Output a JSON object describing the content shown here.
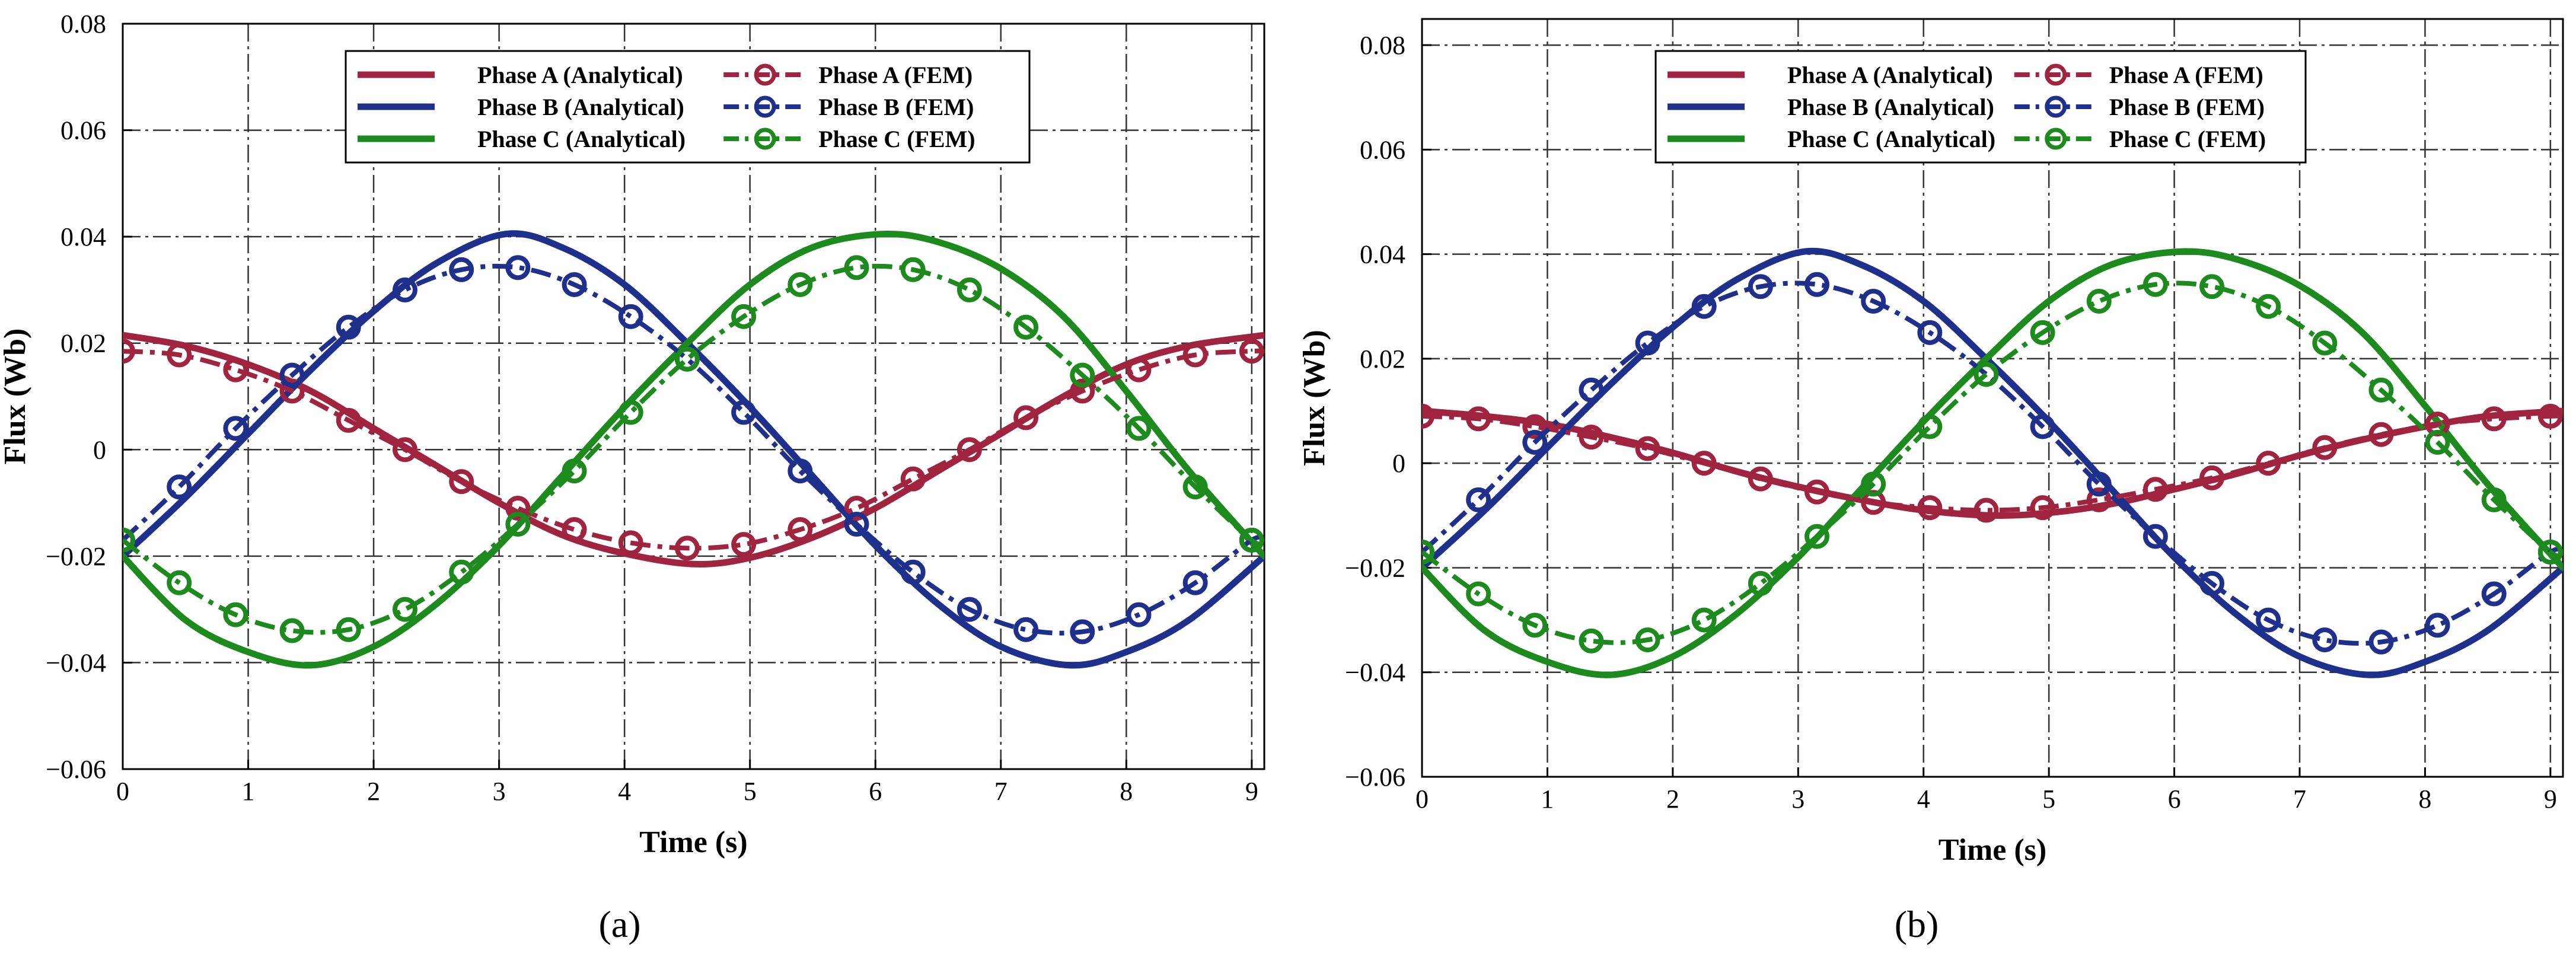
{
  "colors": {
    "phase_a": "#A0243F",
    "phase_b": "#1F2F8C",
    "phase_c": "#1C8A1C",
    "axis": "#000000",
    "grid": "#333333"
  },
  "chart_data": [
    {
      "panel_label": "(a)",
      "type": "line",
      "xlabel": "Time (s)",
      "ylabel": "Flux (Wb)",
      "xlim": [
        0,
        9.1
      ],
      "ylim": [
        -0.06,
        0.08
      ],
      "x_ticks": [
        0,
        1,
        2,
        3,
        4,
        5,
        6,
        7,
        8,
        9
      ],
      "y_ticks": [
        -0.06,
        -0.04,
        -0.02,
        0,
        0.02,
        0.04,
        0.06,
        0.08
      ],
      "x_tick_labels": [
        "0",
        "1",
        "2",
        "3",
        "4",
        "5",
        "6",
        "7",
        "8",
        "9"
      ],
      "y_tick_labels": [
        "−0.06",
        "−0.04",
        "−0.02",
        "0",
        "0.02",
        "0.04",
        "0.06",
        "0.08"
      ],
      "grid": true,
      "legend_position": "top-center",
      "series": [
        {
          "name": "Phase A (Analytical)",
          "phase": "a",
          "style": "solid",
          "x": [
            0,
            0.5,
            1,
            1.5,
            2,
            2.5,
            3,
            3.5,
            4,
            4.55,
            5,
            5.5,
            6,
            6.5,
            7,
            7.5,
            8,
            8.5,
            9.1
          ],
          "y": [
            0.0215,
            0.0195,
            0.016,
            0.011,
            0.004,
            -0.003,
            -0.01,
            -0.016,
            -0.0195,
            -0.0215,
            -0.0203,
            -0.0165,
            -0.011,
            -0.004,
            0.003,
            0.01,
            0.016,
            0.0195,
            0.0215
          ]
        },
        {
          "name": "Phase B (Analytical)",
          "phase": "b",
          "style": "solid",
          "x": [
            0,
            0.5,
            1,
            1.5,
            2,
            2.5,
            3.05,
            3.5,
            4,
            4.5,
            5,
            5.5,
            6,
            6.5,
            7,
            7.55,
            8,
            8.5,
            9.1
          ],
          "y": [
            -0.02,
            -0.009,
            0.003,
            0.015,
            0.026,
            0.035,
            0.0405,
            0.038,
            0.031,
            0.02,
            0.008,
            -0.005,
            -0.018,
            -0.029,
            -0.037,
            -0.0405,
            -0.038,
            -0.032,
            -0.02
          ]
        },
        {
          "name": "Phase C (Analytical)",
          "phase": "c",
          "style": "solid",
          "x": [
            0,
            0.5,
            1,
            1.5,
            2,
            2.5,
            3,
            3.5,
            4,
            4.5,
            5,
            5.5,
            6.05,
            6.5,
            7,
            7.5,
            8,
            8.5,
            9.1
          ],
          "y": [
            -0.02,
            -0.032,
            -0.038,
            -0.0405,
            -0.037,
            -0.029,
            -0.018,
            -0.005,
            0.008,
            0.02,
            0.031,
            0.038,
            0.0405,
            0.039,
            0.034,
            0.025,
            0.011,
            -0.004,
            -0.02
          ]
        },
        {
          "name": "Phase A (FEM)",
          "phase": "a",
          "style": "dashdot-marker",
          "x": [
            0,
            0.45,
            0.9,
            1.35,
            1.8,
            2.25,
            2.7,
            3.15,
            3.6,
            4.05,
            4.5,
            4.95,
            5.4,
            5.85,
            6.3,
            6.75,
            7.2,
            7.65,
            8.1,
            8.55,
            9.0,
            9.1
          ],
          "y": [
            0.0185,
            0.0178,
            0.015,
            0.011,
            0.0055,
            0.0,
            -0.006,
            -0.011,
            -0.015,
            -0.0175,
            -0.0185,
            -0.0178,
            -0.015,
            -0.011,
            -0.0055,
            0.0,
            0.006,
            0.011,
            0.015,
            0.0178,
            0.0185,
            0.0185
          ]
        },
        {
          "name": "Phase B (FEM)",
          "phase": "b",
          "style": "dashdot-marker",
          "x": [
            0,
            0.45,
            0.9,
            1.35,
            1.8,
            2.25,
            2.7,
            3.15,
            3.6,
            4.05,
            4.5,
            4.95,
            5.4,
            5.85,
            6.3,
            6.75,
            7.2,
            7.65,
            8.1,
            8.55,
            9.0,
            9.1
          ],
          "y": [
            -0.017,
            -0.007,
            0.004,
            0.014,
            0.023,
            0.03,
            0.0338,
            0.0342,
            0.031,
            0.025,
            0.017,
            0.007,
            -0.004,
            -0.014,
            -0.023,
            -0.03,
            -0.0338,
            -0.0342,
            -0.031,
            -0.025,
            -0.017,
            -0.017
          ]
        },
        {
          "name": "Phase C (FEM)",
          "phase": "c",
          "style": "dashdot-marker",
          "x": [
            0,
            0.45,
            0.9,
            1.35,
            1.8,
            2.25,
            2.7,
            3.15,
            3.6,
            4.05,
            4.5,
            4.95,
            5.4,
            5.85,
            6.3,
            6.75,
            7.2,
            7.65,
            8.1,
            8.55,
            9.0,
            9.1
          ],
          "y": [
            -0.017,
            -0.025,
            -0.031,
            -0.034,
            -0.0338,
            -0.03,
            -0.023,
            -0.014,
            -0.004,
            0.007,
            0.017,
            0.025,
            0.031,
            0.0342,
            0.0338,
            0.03,
            0.023,
            0.014,
            0.004,
            -0.007,
            -0.017,
            -0.017
          ]
        }
      ]
    },
    {
      "panel_label": "(b)",
      "type": "line",
      "xlabel": "Time (s)",
      "ylabel": "Flux (Wb)",
      "xlim": [
        0,
        9.1
      ],
      "ylim": [
        -0.06,
        0.085
      ],
      "x_ticks": [
        0,
        1,
        2,
        3,
        4,
        5,
        6,
        7,
        8,
        9
      ],
      "y_ticks": [
        -0.06,
        -0.04,
        -0.02,
        0,
        0.02,
        0.04,
        0.06,
        0.08
      ],
      "x_tick_labels": [
        "0",
        "1",
        "2",
        "3",
        "4",
        "5",
        "6",
        "7",
        "8",
        "9"
      ],
      "y_tick_labels": [
        "−0.06",
        "−0.04",
        "−0.02",
        "0",
        "0.02",
        "0.04",
        "0.06",
        "0.08"
      ],
      "grid": true,
      "legend_position": "top-center",
      "series": [
        {
          "name": "Phase A (Analytical)",
          "phase": "a",
          "style": "solid",
          "x": [
            0,
            0.5,
            1,
            1.5,
            2,
            2.5,
            3,
            3.5,
            4,
            4.55,
            5,
            5.5,
            6,
            6.5,
            7,
            7.5,
            8,
            8.5,
            9.1
          ],
          "y": [
            0.01,
            0.009,
            0.0075,
            0.005,
            0.002,
            -0.0015,
            -0.0045,
            -0.007,
            -0.009,
            -0.01,
            -0.0095,
            -0.0078,
            -0.005,
            -0.002,
            0.0015,
            0.0045,
            0.007,
            0.009,
            0.01
          ]
        },
        {
          "name": "Phase B (Analytical)",
          "phase": "b",
          "style": "solid",
          "x": [
            0,
            0.5,
            1,
            1.5,
            2,
            2.5,
            3.05,
            3.5,
            4,
            4.5,
            5,
            5.5,
            6,
            6.5,
            7,
            7.55,
            8,
            8.5,
            9.1
          ],
          "y": [
            -0.02,
            -0.009,
            0.003,
            0.015,
            0.026,
            0.035,
            0.0405,
            0.038,
            0.031,
            0.02,
            0.008,
            -0.005,
            -0.018,
            -0.029,
            -0.037,
            -0.0405,
            -0.038,
            -0.032,
            -0.02
          ]
        },
        {
          "name": "Phase C (Analytical)",
          "phase": "c",
          "style": "solid",
          "x": [
            0,
            0.5,
            1,
            1.5,
            2,
            2.5,
            3,
            3.5,
            4,
            4.5,
            5,
            5.5,
            6.05,
            6.5,
            7,
            7.5,
            8,
            8.5,
            9.1
          ],
          "y": [
            -0.02,
            -0.032,
            -0.038,
            -0.0405,
            -0.037,
            -0.029,
            -0.018,
            -0.005,
            0.008,
            0.02,
            0.031,
            0.038,
            0.0405,
            0.039,
            0.034,
            0.025,
            0.011,
            -0.004,
            -0.02
          ]
        },
        {
          "name": "Phase A (FEM)",
          "phase": "a",
          "style": "dashdot-marker",
          "x": [
            0,
            0.45,
            0.9,
            1.35,
            1.8,
            2.25,
            2.7,
            3.15,
            3.6,
            4.05,
            4.5,
            4.95,
            5.4,
            5.85,
            6.3,
            6.75,
            7.2,
            7.65,
            8.1,
            8.55,
            9.0,
            9.1
          ],
          "y": [
            0.009,
            0.0085,
            0.007,
            0.005,
            0.0028,
            0.0,
            -0.003,
            -0.0055,
            -0.0075,
            -0.0085,
            -0.009,
            -0.0085,
            -0.007,
            -0.005,
            -0.0028,
            0.0,
            0.003,
            0.0055,
            0.0075,
            0.0085,
            0.009,
            0.009
          ]
        },
        {
          "name": "Phase B (FEM)",
          "phase": "b",
          "style": "dashdot-marker",
          "x": [
            0,
            0.45,
            0.9,
            1.35,
            1.8,
            2.25,
            2.7,
            3.15,
            3.6,
            4.05,
            4.5,
            4.95,
            5.4,
            5.85,
            6.3,
            6.75,
            7.2,
            7.65,
            8.1,
            8.55,
            9.0,
            9.1
          ],
          "y": [
            -0.017,
            -0.007,
            0.004,
            0.014,
            0.023,
            0.03,
            0.0338,
            0.0342,
            0.031,
            0.025,
            0.017,
            0.007,
            -0.004,
            -0.014,
            -0.023,
            -0.03,
            -0.0338,
            -0.0342,
            -0.031,
            -0.025,
            -0.017,
            -0.017
          ]
        },
        {
          "name": "Phase C (FEM)",
          "phase": "c",
          "style": "dashdot-marker",
          "x": [
            0,
            0.45,
            0.9,
            1.35,
            1.8,
            2.25,
            2.7,
            3.15,
            3.6,
            4.05,
            4.5,
            4.95,
            5.4,
            5.85,
            6.3,
            6.75,
            7.2,
            7.65,
            8.1,
            8.55,
            9.0,
            9.1
          ],
          "y": [
            -0.017,
            -0.025,
            -0.031,
            -0.034,
            -0.0338,
            -0.03,
            -0.023,
            -0.014,
            -0.004,
            0.007,
            0.017,
            0.025,
            0.031,
            0.0342,
            0.0338,
            0.03,
            0.023,
            0.014,
            0.004,
            -0.007,
            -0.017,
            -0.017
          ]
        }
      ]
    }
  ]
}
